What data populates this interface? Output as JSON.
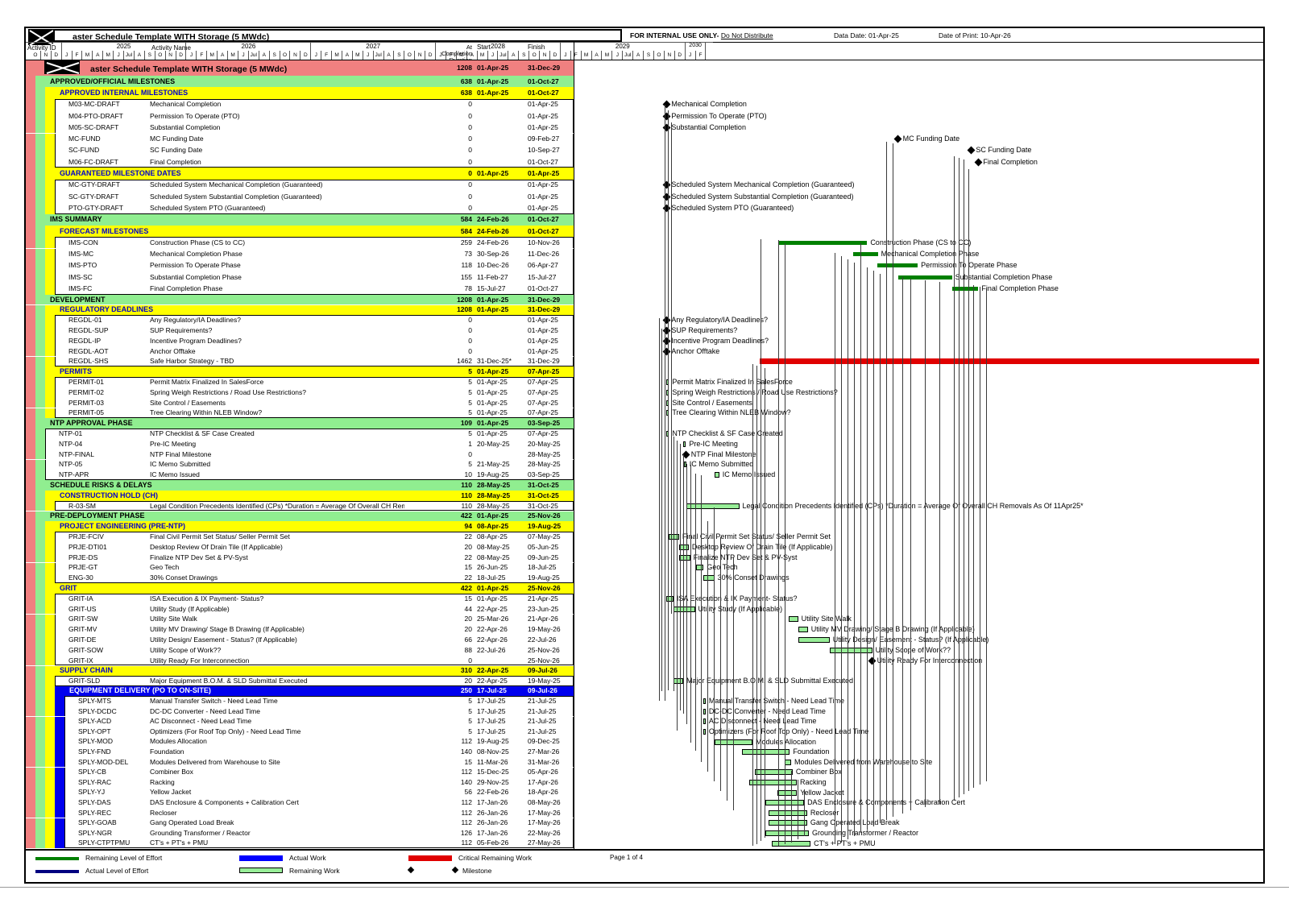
{
  "header": {
    "title": "aster Schedule Template WITH Storage (5 MWdc)",
    "internal_use": "FOR INTERNAL USE ONLY-",
    "do_not_distribute": "Do Not Distribute",
    "data_date": "Data Date: 01-Apr-25",
    "print_date": "Date of Print: 10-Apr-26"
  },
  "columns": {
    "activity_id": "Activity ID",
    "activity_name": "Activity Name",
    "at": "At",
    "completion": "Completion",
    "duration": "Duration",
    "start": "Start",
    "finish": "Finish"
  },
  "timeline": {
    "lead_months": [
      "O",
      "N",
      "D"
    ],
    "year_months": [
      "J",
      "F",
      "M",
      "A",
      "M",
      "J",
      "Jul",
      "A",
      "S",
      "O",
      "N",
      "D"
    ],
    "years": [
      "2025",
      "2026",
      "2027",
      "2028",
      "2029"
    ],
    "tail_year": "2030",
    "tail_months": [
      "J",
      "F"
    ]
  },
  "colors": {
    "project": "#F08080",
    "level1": "#90EE90",
    "level2": "#FFFF00",
    "level3": "#0000EE",
    "remaining": "#98EE98",
    "loe": "#008000",
    "critical": "#E00000",
    "actual": "#0000FF",
    "actual_loe": "#000080",
    "milestone": "#000000",
    "level2_text": "#0000CC"
  },
  "rows": [
    {
      "id": "",
      "name": "aster Schedule Template WITH Storage (5 MWdc)",
      "type": "p",
      "dur": "1208",
      "start": "01-Apr-25",
      "finish": "31-Dec-29",
      "bar": ""
    },
    {
      "id": "",
      "name": "APPROVED/OFFICIAL MILESTONES",
      "type": "g",
      "dur": "638",
      "start": "01-Apr-25",
      "finish": "01-Oct-27",
      "bar": ""
    },
    {
      "id": "",
      "name": "APPROVED INTERNAL MILESTONES",
      "type": "y",
      "dur": "638",
      "start": "01-Apr-25",
      "finish": "01-Oct-27",
      "bar": ""
    },
    {
      "id": "M03-MC-DRAFT",
      "name": "Mechanical Completion",
      "type": "t",
      "dur": "0",
      "start": "",
      "finish": "01-Apr-25",
      "bar": "m"
    },
    {
      "id": "M04-PTO-DRAFT",
      "name": "Permission To Operate (PTO)",
      "type": "t",
      "dur": "0",
      "start": "",
      "finish": "01-Apr-25",
      "bar": "m"
    },
    {
      "id": "M05-SC-DRAFT",
      "name": "Substantial Completion",
      "type": "t",
      "dur": "0",
      "start": "",
      "finish": "01-Apr-25",
      "bar": "m"
    },
    {
      "id": "MC-FUND",
      "name": "MC Funding Date",
      "type": "t",
      "dur": "0",
      "start": "",
      "finish": "09-Feb-27",
      "bar": "m"
    },
    {
      "id": "SC-FUND",
      "name": "SC Funding Date",
      "type": "t",
      "dur": "0",
      "start": "",
      "finish": "10-Sep-27",
      "bar": "m"
    },
    {
      "id": "M06-FC-DRAFT",
      "name": "Final Completion",
      "type": "t",
      "dur": "0",
      "start": "",
      "finish": "01-Oct-27",
      "bar": "m"
    },
    {
      "id": "",
      "name": "GUARANTEED MILESTONE DATES",
      "type": "y",
      "dur": "0",
      "start": "01-Apr-25",
      "finish": "01-Apr-25",
      "bar": ""
    },
    {
      "id": "MC-GTY-DRAFT",
      "name": "Scheduled System Mechanical Completion (Guaranteed)",
      "type": "t",
      "dur": "0",
      "start": "",
      "finish": "01-Apr-25",
      "bar": "m"
    },
    {
      "id": "SC-GTY-DRAFT",
      "name": "Scheduled System Substantial Completion (Guaranteed)",
      "type": "t",
      "dur": "0",
      "start": "",
      "finish": "01-Apr-25",
      "bar": "m"
    },
    {
      "id": "PTO-GTY-DRAFT",
      "name": "Scheduled System PTO (Guaranteed)",
      "type": "t",
      "dur": "0",
      "start": "",
      "finish": "01-Apr-25",
      "bar": "m"
    },
    {
      "id": "",
      "name": "IMS SUMMARY",
      "type": "g",
      "dur": "584",
      "start": "24-Feb-26",
      "finish": "01-Oct-27",
      "bar": ""
    },
    {
      "id": "",
      "name": "FORECAST MILESTONES",
      "type": "y",
      "dur": "584",
      "start": "24-Feb-26",
      "finish": "01-Oct-27",
      "bar": ""
    },
    {
      "id": "IMS-CON",
      "name": "Construction Phase (CS to CC)",
      "type": "t",
      "dur": "259",
      "start": "24-Feb-26",
      "finish": "10-Nov-26",
      "bar": "loe"
    },
    {
      "id": "IMS-MC",
      "name": "Mechanical Completion Phase",
      "type": "t",
      "dur": "73",
      "start": "30-Sep-26",
      "finish": "11-Dec-26",
      "bar": "loe"
    },
    {
      "id": "IMS-PTO",
      "name": "Permission To Operate Phase",
      "type": "t",
      "dur": "118",
      "start": "10-Dec-26",
      "finish": "06-Apr-27",
      "bar": "loe"
    },
    {
      "id": "IMS-SC",
      "name": "Substantial Completion Phase",
      "type": "t",
      "dur": "155",
      "start": "11-Feb-27",
      "finish": "15-Jul-27",
      "bar": "loe"
    },
    {
      "id": "IMS-FC",
      "name": "Final Completion Phase",
      "type": "t",
      "dur": "78",
      "start": "15-Jul-27",
      "finish": "01-Oct-27",
      "bar": "loe"
    },
    {
      "id": "",
      "name": "DEVELOPMENT",
      "type": "g",
      "dur": "1208",
      "start": "01-Apr-25",
      "finish": "31-Dec-29",
      "bar": ""
    },
    {
      "id": "",
      "name": "REGULATORY DEADLINES",
      "type": "y",
      "dur": "1208",
      "start": "01-Apr-25",
      "finish": "31-Dec-29",
      "bar": ""
    },
    {
      "id": "REGDL-01",
      "name": "Any Regulatory/IA Deadlines?",
      "type": "t",
      "dur": "0",
      "start": "",
      "finish": "01-Apr-25",
      "bar": "m"
    },
    {
      "id": "REGDL-SUP",
      "name": "SUP Requirements?",
      "type": "t",
      "dur": "0",
      "start": "",
      "finish": "01-Apr-25",
      "bar": "m"
    },
    {
      "id": "REGDL-IP",
      "name": "Incentive Program Deadlines?",
      "type": "t",
      "dur": "0",
      "start": "",
      "finish": "01-Apr-25",
      "bar": "m"
    },
    {
      "id": "REGDL-AOT",
      "name": "Anchor Offtake",
      "type": "t",
      "dur": "0",
      "start": "",
      "finish": "01-Apr-25",
      "bar": "m"
    },
    {
      "id": "REGDL-SHS",
      "name": "Safe Harbor Strategy - TBD",
      "type": "t",
      "dur": "1462",
      "start": "31-Dec-25*",
      "finish": "31-Dec-29",
      "bar": "crit",
      "blabel": "Safe Harbor Strategy - TBD"
    },
    {
      "id": "",
      "name": "PERMITS",
      "type": "y",
      "dur": "5",
      "start": "01-Apr-25",
      "finish": "07-Apr-25",
      "bar": ""
    },
    {
      "id": "PERMIT-01",
      "name": "Permit Matrix Finalized In SalesForce",
      "type": "t",
      "dur": "5",
      "start": "01-Apr-25",
      "finish": "07-Apr-25",
      "bar": "rem"
    },
    {
      "id": "PERMIT-02",
      "name": "Spring Weigh Restrictions / Road Use Restrictions?",
      "type": "t",
      "dur": "5",
      "start": "01-Apr-25",
      "finish": "07-Apr-25",
      "bar": "rem"
    },
    {
      "id": "PERMIT-03",
      "name": "Site Control / Easements",
      "type": "t",
      "dur": "5",
      "start": "01-Apr-25",
      "finish": "07-Apr-25",
      "bar": "rem"
    },
    {
      "id": "PERMIT-05",
      "name": "Tree Clearing Within NLEB Window?",
      "type": "t",
      "dur": "5",
      "start": "01-Apr-25",
      "finish": "07-Apr-25",
      "bar": "rem"
    },
    {
      "id": "",
      "name": "NTP APPROVAL PHASE",
      "type": "g",
      "dur": "109",
      "start": "01-Apr-25",
      "finish": "03-Sep-25",
      "bar": ""
    },
    {
      "id": "NTP-01",
      "name": "NTP Checklist & SF Case Created",
      "type": "t1",
      "dur": "5",
      "start": "01-Apr-25",
      "finish": "07-Apr-25",
      "bar": "rem"
    },
    {
      "id": "NTP-04",
      "name": "Pre-IC Meeting",
      "type": "t1",
      "dur": "1",
      "start": "20-May-25",
      "finish": "20-May-25",
      "bar": "rem"
    },
    {
      "id": "NTP-FINAL",
      "name": "NTP Final Milestone",
      "type": "t1",
      "dur": "0",
      "start": "",
      "finish": "28-May-25",
      "bar": "m"
    },
    {
      "id": "NTP-05",
      "name": "IC Memo Submitted",
      "type": "t1",
      "dur": "5",
      "start": "21-May-25",
      "finish": "28-May-25",
      "bar": "rem"
    },
    {
      "id": "NTP-APR",
      "name": "IC Memo Issued",
      "type": "t1",
      "dur": "10",
      "start": "19-Aug-25",
      "finish": "03-Sep-25",
      "bar": "rem"
    },
    {
      "id": "",
      "name": "SCHEDULE RISKS & DELAYS",
      "type": "g",
      "dur": "110",
      "start": "28-May-25",
      "finish": "31-Oct-25",
      "bar": ""
    },
    {
      "id": "",
      "name": "CONSTRUCTION HOLD (CH)",
      "type": "y",
      "dur": "110",
      "start": "28-May-25",
      "finish": "31-Oct-25",
      "bar": ""
    },
    {
      "id": "R-03-SM",
      "name": "Legal Condition Precedents Identified (CPs) *Duration = Average Of Overall CH Removals As Of 11Apr25*",
      "type": "t",
      "dur": "110",
      "start": "28-May-25",
      "finish": "31-Oct-25",
      "bar": "rem",
      "blabel": "Legal Condition Precedents Identified (CPs) *Duration = Average Of Overall CH Removals As Of 11Apr25*"
    },
    {
      "id": "",
      "name": "PRE-DEPLOYMENT PHASE",
      "type": "g",
      "dur": "422",
      "start": "01-Apr-25",
      "finish": "25-Nov-26",
      "bar": ""
    },
    {
      "id": "",
      "name": "PROJECT ENGINEERING (PRE-NTP)",
      "type": "y",
      "dur": "94",
      "start": "08-Apr-25",
      "finish": "19-Aug-25",
      "bar": ""
    },
    {
      "id": "PRJE-FCIV",
      "name": "Final Civil Permit Set Status/ Seller Permit Set",
      "type": "t",
      "dur": "22",
      "start": "08-Apr-25",
      "finish": "07-May-25",
      "bar": "rem"
    },
    {
      "id": "PRJE-DTI01",
      "name": "Desktop Review Of Drain Tile (If Applicable)",
      "type": "t",
      "dur": "20",
      "start": "08-May-25",
      "finish": "05-Jun-25",
      "bar": "rem"
    },
    {
      "id": "PRJE-DS",
      "name": "Finalize NTP Dev Set & PV-Syst",
      "type": "t",
      "dur": "22",
      "start": "08-May-25",
      "finish": "09-Jun-25",
      "bar": "rem"
    },
    {
      "id": "PRJE-GT",
      "name": "Geo Tech",
      "type": "t",
      "dur": "15",
      "start": "26-Jun-25",
      "finish": "18-Jul-25",
      "bar": "rem"
    },
    {
      "id": "ENG-30",
      "name": "30% Conset Drawings",
      "type": "t",
      "dur": "22",
      "start": "18-Jul-25",
      "finish": "19-Aug-25",
      "bar": "rem"
    },
    {
      "id": "",
      "name": "GRIT",
      "type": "y",
      "dur": "422",
      "start": "01-Apr-25",
      "finish": "25-Nov-26",
      "bar": ""
    },
    {
      "id": "GRIT-IA",
      "name": "ISA Execution & IX Payment- Status?",
      "type": "t",
      "dur": "15",
      "start": "01-Apr-25",
      "finish": "21-Apr-25",
      "bar": "rem"
    },
    {
      "id": "GRIT-US",
      "name": "Utility Study (If Applicable)",
      "type": "t",
      "dur": "44",
      "start": "22-Apr-25",
      "finish": "23-Jun-25",
      "bar": "rem"
    },
    {
      "id": "GRIT-SW",
      "name": "Utility Site Walk",
      "type": "t",
      "dur": "20",
      "start": "25-Mar-26",
      "finish": "21-Apr-26",
      "bar": "rem"
    },
    {
      "id": "GRIT-MV",
      "name": "Utility MV Drawing/ Stage B Drawing (If Applicable)",
      "type": "t",
      "dur": "20",
      "start": "22-Apr-26",
      "finish": "19-May-26",
      "bar": "rem"
    },
    {
      "id": "GRIT-DE",
      "name": "Utility Design/ Easement - Status? (If Applicable)",
      "type": "t",
      "dur": "66",
      "start": "22-Apr-26",
      "finish": "22-Jul-26",
      "bar": "rem"
    },
    {
      "id": "GRIT-SOW",
      "name": "Utility Scope of Work??",
      "type": "t",
      "dur": "88",
      "start": "22-Jul-26",
      "finish": "25-Nov-26",
      "bar": "rem"
    },
    {
      "id": "GRIT-IX",
      "name": "Utility Ready For Interconnection",
      "type": "t",
      "dur": "0",
      "start": "",
      "finish": "25-Nov-26",
      "bar": "m"
    },
    {
      "id": "",
      "name": "SUPPLY CHAIN",
      "type": "y",
      "dur": "310",
      "start": "22-Apr-25",
      "finish": "09-Jul-26",
      "bar": ""
    },
    {
      "id": "GRIT-SLD",
      "name": "Major Equipment B.O.M. & SLD Submittal Executed",
      "type": "t",
      "dur": "20",
      "start": "22-Apr-25",
      "finish": "19-May-25",
      "bar": "rem"
    },
    {
      "id": "",
      "name": "EQUIPMENT DELIVERY (PO TO ON-SITE)",
      "type": "b",
      "dur": "250",
      "start": "17-Jul-25",
      "finish": "09-Jul-26",
      "bar": ""
    },
    {
      "id": "SPLY-MTS",
      "name": "Manual Transfer Switch - Need Lead Time",
      "type": "t2",
      "dur": "5",
      "start": "17-Jul-25",
      "finish": "21-Jul-25",
      "bar": "rem"
    },
    {
      "id": "SPLY-DCDC",
      "name": "DC-DC Converter - Need Lead Time",
      "type": "t2",
      "dur": "5",
      "start": "17-Jul-25",
      "finish": "21-Jul-25",
      "bar": "rem"
    },
    {
      "id": "SPLY-ACD",
      "name": "AC Disconnect - Need Lead Time",
      "type": "t2",
      "dur": "5",
      "start": "17-Jul-25",
      "finish": "21-Jul-25",
      "bar": "rem"
    },
    {
      "id": "SPLY-OPT",
      "name": "Optimizers (For Roof Top Only) - Need Lead Time",
      "type": "t2",
      "dur": "5",
      "start": "17-Jul-25",
      "finish": "21-Jul-25",
      "bar": "rem"
    },
    {
      "id": "SPLY-MOD",
      "name": "Modules Allocation",
      "type": "t2",
      "dur": "112",
      "start": "19-Aug-25",
      "finish": "09-Dec-25",
      "bar": "rem"
    },
    {
      "id": "SPLY-FND",
      "name": "Foundation",
      "type": "t2",
      "dur": "140",
      "start": "08-Nov-25",
      "finish": "27-Mar-26",
      "bar": "rem"
    },
    {
      "id": "SPLY-MOD-DEL",
      "name": "Modules Delivered from Warehouse to Site",
      "type": "t2",
      "dur": "15",
      "start": "11-Mar-26",
      "finish": "31-Mar-26",
      "bar": "rem"
    },
    {
      "id": "SPLY-CB",
      "name": "Combiner Box",
      "type": "t2",
      "dur": "112",
      "start": "15-Dec-25",
      "finish": "05-Apr-26",
      "bar": "rem"
    },
    {
      "id": "SPLY-RAC",
      "name": "Racking",
      "type": "t2",
      "dur": "140",
      "start": "29-Nov-25",
      "finish": "17-Apr-26",
      "bar": "rem"
    },
    {
      "id": "SPLY-YJ",
      "name": "Yellow Jacket",
      "type": "t2",
      "dur": "56",
      "start": "22-Feb-26",
      "finish": "18-Apr-26",
      "bar": "rem"
    },
    {
      "id": "SPLY-DAS",
      "name": "DAS Enclosure & Components + Calibration Cert",
      "type": "t2",
      "dur": "112",
      "start": "17-Jan-26",
      "finish": "08-May-26",
      "bar": "rem"
    },
    {
      "id": "SPLY-REC",
      "name": "Recloser",
      "type": "t2",
      "dur": "112",
      "start": "26-Jan-26",
      "finish": "17-May-26",
      "bar": "rem"
    },
    {
      "id": "SPLY-GOAB",
      "name": "Gang Operated Load Break",
      "type": "t2",
      "dur": "112",
      "start": "26-Jan-26",
      "finish": "17-May-26",
      "bar": "rem"
    },
    {
      "id": "SPLY-NGR",
      "name": "Grounding Transformer / Reactor",
      "type": "t2",
      "dur": "126",
      "start": "17-Jan-26",
      "finish": "22-May-26",
      "bar": "rem"
    },
    {
      "id": "SPLY-CTPTPMU",
      "name": "CT's + PT's + PMU",
      "type": "t2",
      "dur": "112",
      "start": "05-Feb-26",
      "finish": "27-May-26",
      "bar": "rem"
    }
  ],
  "legend": {
    "items": [
      {
        "label": "Remaining Level of Effort"
      },
      {
        "label": "Actual Work"
      },
      {
        "label": "Critical Remaining Work"
      },
      {
        "label": "Actual Level of Effort"
      },
      {
        "label": "Remaining Work"
      },
      {
        "label": "Milestone"
      }
    ]
  },
  "footer": {
    "page": "Page 1 of 4"
  }
}
